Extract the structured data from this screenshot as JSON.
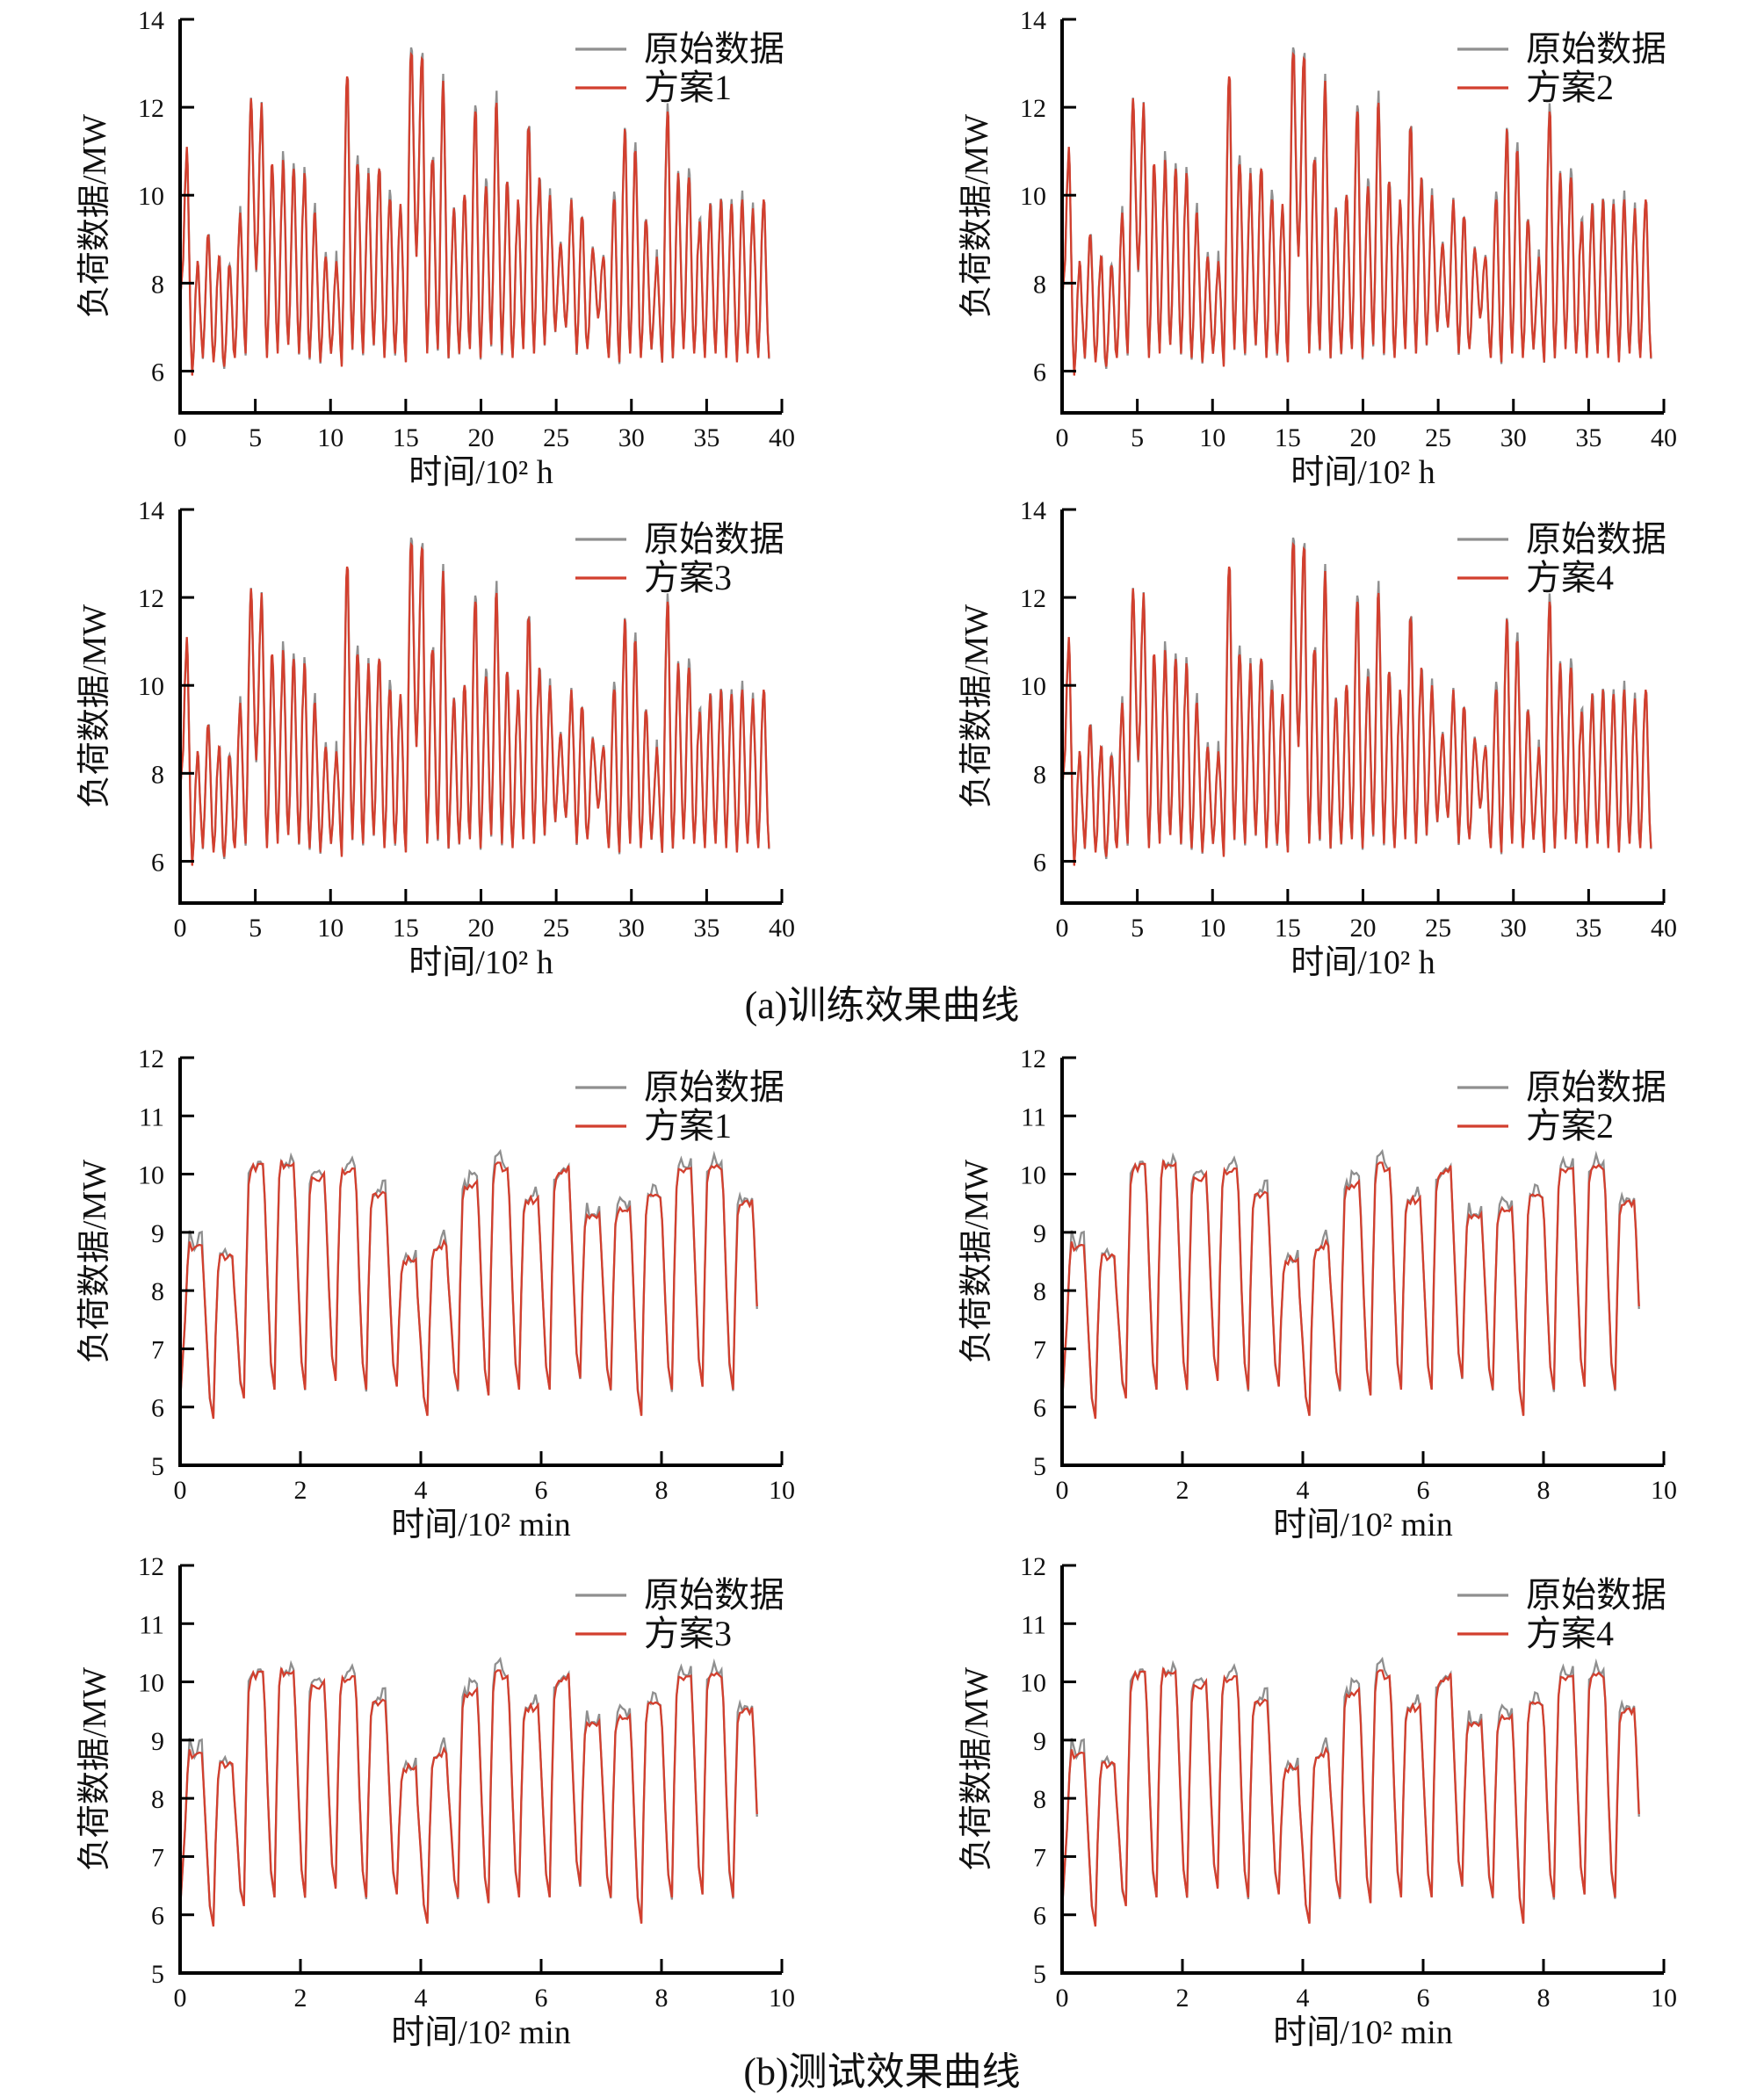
{
  "colors": {
    "original_line": "#8f8f8f",
    "scheme_line": "#d23f2e",
    "axis": "#000000",
    "text": "#111111",
    "background": "#ffffff"
  },
  "legend": {
    "original_label": "原始数据"
  },
  "chart_data": [
    {
      "id": "train",
      "type": "line",
      "caption": "(a)训练效果曲线",
      "xlabel": "时间/10² h",
      "ylabel": "负荷数据/MW",
      "xlim": [
        0,
        40
      ],
      "xticks": [
        0,
        5,
        10,
        15,
        20,
        25,
        30,
        35,
        40
      ],
      "ylim": [
        5.05,
        14
      ],
      "yticks": [
        6,
        8,
        10,
        12,
        14
      ],
      "legend_entries": [
        "原始数据",
        "方案"
      ],
      "panels": [
        "方案1",
        "方案2",
        "方案3",
        "方案4"
      ],
      "waveform": "spike",
      "x_first_peak": 0.45,
      "cycle_dx": 0.71,
      "start_y": 7.6,
      "x_cut": 39.2,
      "original_deviation": 0.2,
      "peaks": [
        11.1,
        8.5,
        9.1,
        8.6,
        8.4,
        9.6,
        12.2,
        12.1,
        10.7,
        10.8,
        10.6,
        10.5,
        9.6,
        8.6,
        8.5,
        12.7,
        10.7,
        10.5,
        10.6,
        9.9,
        9.8,
        13.2,
        13.1,
        10.8,
        12.6,
        9.7,
        10.0,
        11.9,
        10.2,
        12.1,
        10.3,
        9.9,
        11.5,
        10.4,
        10.0,
        8.9,
        9.9,
        9.5,
        8.8,
        8.6,
        9.9,
        11.5,
        11.0,
        9.4,
        8.6,
        11.9,
        10.5,
        10.4,
        9.4,
        9.8,
        9.9,
        9.8,
        9.9,
        9.7,
        9.9
      ],
      "valleys": [
        5.9,
        6.3,
        6.2,
        6.1,
        6.3,
        6.4,
        8.3,
        6.3,
        6.4,
        6.6,
        6.4,
        6.3,
        6.2,
        6.4,
        6.1,
        6.5,
        6.4,
        6.6,
        6.3,
        6.4,
        6.2,
        8.6,
        6.4,
        6.5,
        6.3,
        6.4,
        6.5,
        6.3,
        6.6,
        6.4,
        6.3,
        6.5,
        6.4,
        6.6,
        6.9,
        7.0,
        6.4,
        6.5,
        7.2,
        6.3,
        6.2,
        6.4,
        6.3,
        6.5,
        6.2,
        6.3,
        6.5,
        6.4,
        6.3,
        6.4,
        6.3,
        6.2,
        6.4,
        6.3,
        6.3
      ]
    },
    {
      "id": "test",
      "type": "line",
      "caption": "(b)测试效果曲线",
      "xlabel": "时间/10² min",
      "ylabel": "负荷数据/MW",
      "xlim": [
        0,
        10
      ],
      "xticks": [
        0,
        2,
        4,
        6,
        8,
        10
      ],
      "ylim": [
        5,
        12
      ],
      "yticks": [
        5,
        6,
        7,
        8,
        9,
        10,
        11,
        12
      ],
      "legend_entries": [
        "原始数据",
        "方案"
      ],
      "panels": [
        "方案1",
        "方案2",
        "方案3",
        "方案4"
      ],
      "waveform": "plateau",
      "x_first_peak": 0.3,
      "cycle_dx": 0.508,
      "start_y": 6.1,
      "x_cut": 9.6,
      "original_deviation": 0.2,
      "peaks": [
        8.85,
        8.65,
        10.2,
        10.25,
        9.95,
        10.15,
        9.7,
        8.6,
        8.85,
        9.9,
        10.2,
        9.65,
        10.1,
        9.4,
        9.45,
        9.65,
        10.15,
        10.2,
        9.6
      ],
      "valleys": [
        5.8,
        6.15,
        6.3,
        6.3,
        6.45,
        6.3,
        6.35,
        5.85,
        6.3,
        6.2,
        6.3,
        6.3,
        6.5,
        6.3,
        5.85,
        6.3,
        6.35,
        6.3,
        6.2
      ]
    }
  ]
}
